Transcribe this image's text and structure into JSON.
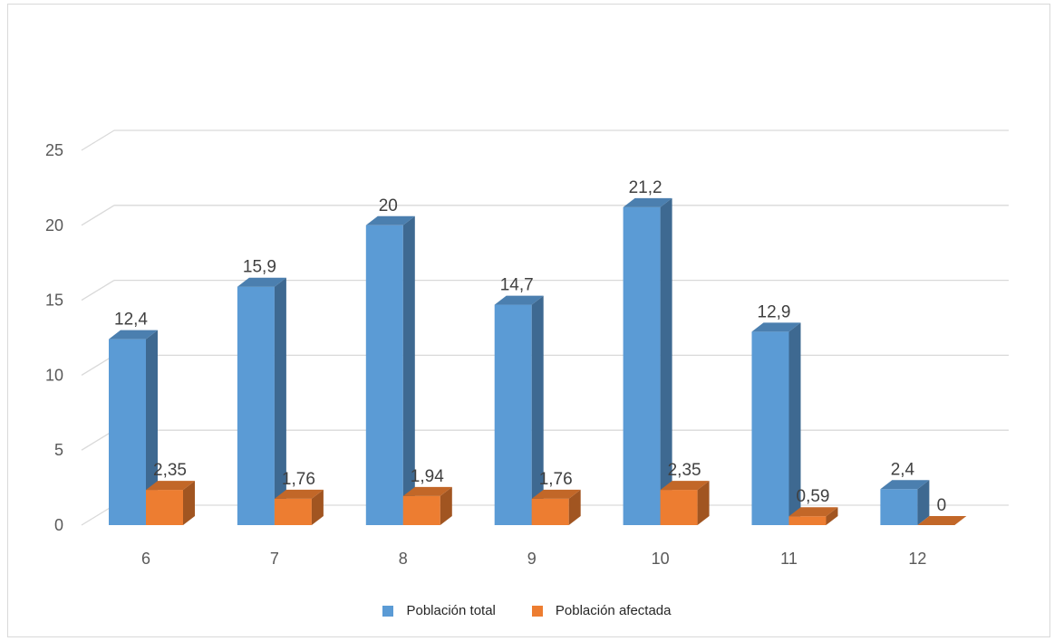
{
  "chart_data": {
    "type": "bar",
    "categories": [
      "6",
      "7",
      "8",
      "9",
      "10",
      "11",
      "12"
    ],
    "series": [
      {
        "name": "Población total",
        "values": [
          12.4,
          15.9,
          20,
          14.7,
          21.2,
          12.9,
          2.4
        ],
        "labels": [
          "12,4",
          "15,9",
          "20",
          "14,7",
          "21,2",
          "12,9",
          "2,4"
        ],
        "color": "#5b9bd5"
      },
      {
        "name": "Población afectada",
        "values": [
          2.35,
          1.76,
          1.94,
          1.76,
          2.35,
          0.59,
          0
        ],
        "labels": [
          "2,35",
          "1,76",
          "1,94",
          "1,76",
          "2,35",
          "0,59",
          "0"
        ],
        "color": "#ed7d31"
      }
    ],
    "yticks": [
      "0",
      "5",
      "10",
      "15",
      "20",
      "25"
    ],
    "ylim": [
      0,
      25
    ],
    "grid": true,
    "legend_position": "bottom",
    "style": "3d-clustered-column"
  }
}
